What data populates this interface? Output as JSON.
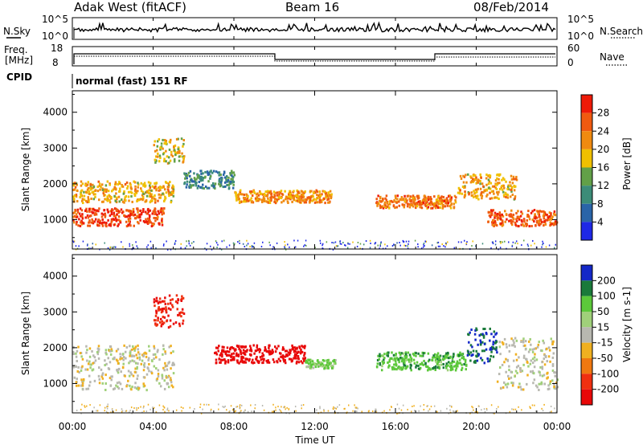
{
  "header": {
    "station": "Adak West (fitACF)",
    "beam": "Beam 16",
    "date": "08/Feb/2014"
  },
  "top_panel": {
    "left_label": "N.Sky",
    "right_label": "N.Search",
    "left_ticks": [
      "10^5",
      "10^0"
    ],
    "right_ticks": [
      "10^5",
      "10^0"
    ]
  },
  "freq_panel": {
    "left_label_1": "Freq.",
    "left_label_2": "[MHz]",
    "right_label": "Nave",
    "left_ticks": [
      "18",
      "8"
    ],
    "right_ticks": [
      "60",
      "0"
    ]
  },
  "cpid": {
    "label": "CPID",
    "mode": "normal (fast) 151 RF"
  },
  "colors": {
    "power_scale": [
      "#1e28e6",
      "#2a64a8",
      "#3c8c78",
      "#62a048",
      "#f0c000",
      "#f08a10",
      "#f05a10",
      "#ee1a08"
    ],
    "velocity_scale": [
      "#1428c8",
      "#1a7a3a",
      "#5cc83a",
      "#a0d07a",
      "#b8b8b0",
      "#f0b020",
      "#f07810",
      "#f03010",
      "#e80808"
    ]
  },
  "chart_data": [
    {
      "type": "heatmap",
      "name": "power",
      "ylabel": "Slant Range [km]",
      "colorbar_label": "Power [dB]",
      "colorbar_ticks": [
        "28",
        "24",
        "20",
        "16",
        "12",
        "8",
        "4"
      ],
      "x_range": [
        "00:00",
        "24:00"
      ],
      "y_range": [
        180,
        4600
      ],
      "y_ticks": [
        1000,
        2000,
        3000,
        4000
      ],
      "bands": [
        {
          "t": [
            0.0,
            4.5
          ],
          "r": [
            850,
            1350
          ],
          "db": 28
        },
        {
          "t": [
            0.0,
            5.0
          ],
          "r": [
            1500,
            2100
          ],
          "db": 20
        },
        {
          "t": [
            4.0,
            5.5
          ],
          "r": [
            2600,
            3300
          ],
          "db": 18
        },
        {
          "t": [
            5.5,
            8.0
          ],
          "r": [
            1900,
            2400
          ],
          "db": 10
        },
        {
          "t": [
            8.0,
            12.8
          ],
          "r": [
            1500,
            1850
          ],
          "db": 22
        },
        {
          "t": [
            15.0,
            19.0
          ],
          "r": [
            1350,
            1700
          ],
          "db": 24
        },
        {
          "t": [
            19.0,
            22.0
          ],
          "r": [
            1600,
            2300
          ],
          "db": 20
        },
        {
          "t": [
            20.5,
            24.0
          ],
          "r": [
            850,
            1300
          ],
          "db": 26
        }
      ]
    },
    {
      "type": "heatmap",
      "name": "velocity",
      "ylabel": "Slant Range [km]",
      "xlabel": "Time UT",
      "colorbar_label": "Velocity [m s-1]",
      "colorbar_ticks": [
        "200",
        "100",
        "50",
        "15",
        "-15",
        "-50",
        "-100",
        "-200"
      ],
      "x_range": [
        "00:00",
        "24:00"
      ],
      "x_ticks": [
        "00:00",
        "04:00",
        "08:00",
        "12:00",
        "16:00",
        "20:00",
        "00:00"
      ],
      "y_range": [
        180,
        4600
      ],
      "y_ticks": [
        1000,
        2000,
        3000,
        4000
      ],
      "bands": [
        {
          "t": [
            0.0,
            5.0
          ],
          "r": [
            850,
            2100
          ],
          "v": 0
        },
        {
          "t": [
            4.0,
            5.5
          ],
          "r": [
            2600,
            3500
          ],
          "v": -150
        },
        {
          "t": [
            7.0,
            11.5
          ],
          "r": [
            1600,
            2100
          ],
          "v": -200
        },
        {
          "t": [
            11.5,
            13.0
          ],
          "r": [
            1450,
            1700
          ],
          "v": 40
        },
        {
          "t": [
            15.0,
            19.5
          ],
          "r": [
            1400,
            1900
          ],
          "v": 60
        },
        {
          "t": [
            19.5,
            21.0
          ],
          "r": [
            1600,
            2600
          ],
          "v": 150
        },
        {
          "t": [
            21.0,
            24.0
          ],
          "r": [
            850,
            2300
          ],
          "v": 0
        }
      ]
    }
  ]
}
